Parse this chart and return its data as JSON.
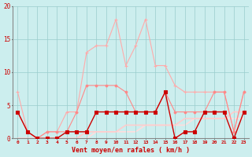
{
  "x": [
    0,
    1,
    2,
    3,
    4,
    5,
    6,
    7,
    8,
    9,
    10,
    11,
    12,
    13,
    14,
    15,
    16,
    17,
    18,
    19,
    20,
    21,
    22,
    23
  ],
  "line_rafales_light": [
    7,
    1,
    0,
    1,
    1,
    4,
    4,
    13,
    14,
    14,
    18,
    11,
    14,
    18,
    11,
    11,
    8,
    7,
    7,
    7,
    7,
    7,
    1,
    7
  ],
  "line_rafales_med": [
    4,
    1,
    0,
    1,
    1,
    1,
    4,
    8,
    8,
    8,
    8,
    7,
    4,
    4,
    4,
    7,
    4,
    4,
    4,
    4,
    7,
    7,
    1,
    7
  ],
  "line_moyen_dark": [
    4,
    1,
    0,
    0,
    0,
    1,
    1,
    1,
    4,
    4,
    4,
    4,
    4,
    4,
    4,
    7,
    0,
    1,
    1,
    4,
    4,
    4,
    0,
    4
  ],
  "line_trend_a": [
    0,
    0,
    0,
    0,
    0,
    0,
    0,
    1,
    1,
    1,
    1,
    2,
    2,
    2,
    2,
    2,
    2,
    3,
    3,
    3,
    3,
    3,
    4,
    4
  ],
  "line_trend_b": [
    0,
    0,
    0,
    0,
    0,
    0,
    0,
    0,
    1,
    1,
    1,
    1,
    1,
    2,
    2,
    2,
    2,
    2,
    3,
    3,
    3,
    3,
    3,
    3
  ],
  "color_rafales_light": "#ffaaaa",
  "color_rafales_med": "#ff8888",
  "color_moyen_dark": "#cc0000",
  "color_trend_a": "#ffcccc",
  "color_trend_b": "#ffdddd",
  "bg_color": "#cceeee",
  "grid_color": "#99cccc",
  "xlabel": "Vent moyen/en rafales ( km/h )",
  "ylim": [
    0,
    20
  ],
  "xlim": [
    0,
    23
  ],
  "yticks": [
    0,
    5,
    10,
    15,
    20
  ]
}
